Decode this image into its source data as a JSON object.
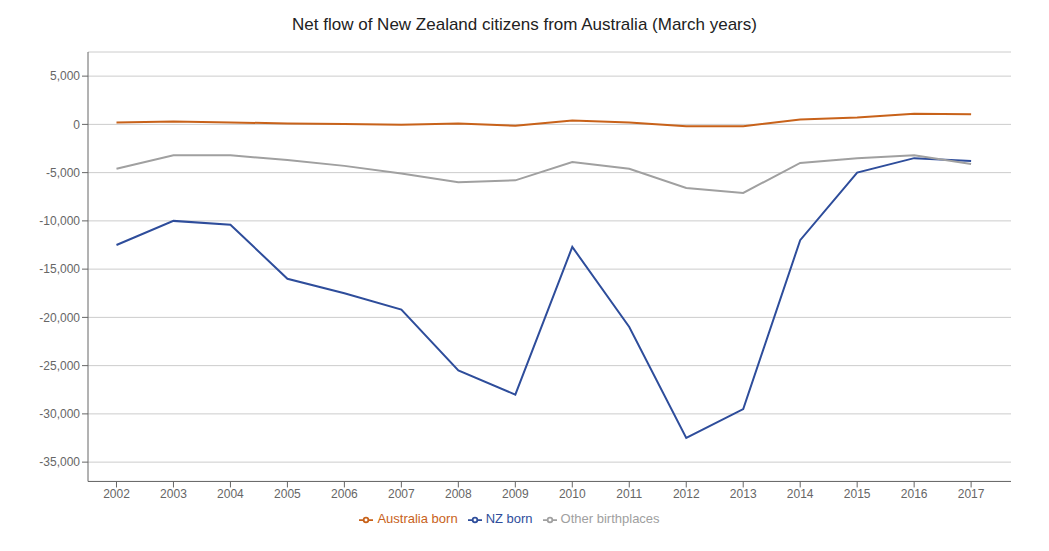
{
  "chart_data": {
    "type": "line",
    "title": "Net flow of New Zealand citizens from Australia (March years)",
    "x": [
      2002,
      2003,
      2004,
      2005,
      2006,
      2007,
      2008,
      2009,
      2010,
      2011,
      2012,
      2013,
      2014,
      2015,
      2016,
      2017
    ],
    "series": [
      {
        "name": "NZ born",
        "color": "#2e4d9b",
        "values": [
          -12500,
          -10000,
          -10400,
          -16000,
          -17500,
          -19200,
          -25500,
          -28000,
          -12700,
          -21000,
          -32500,
          -29500,
          -12000,
          -5000,
          -3500,
          -3800
        ]
      },
      {
        "name": "Australia born",
        "color": "#c8621a",
        "values": [
          200,
          300,
          200,
          100,
          50,
          -50,
          100,
          -150,
          400,
          200,
          -200,
          -200,
          500,
          700,
          1100,
          1050
        ]
      },
      {
        "name": "Other birthplaces",
        "color": "#a0a0a0",
        "values": [
          -4600,
          -3200,
          -3200,
          -3700,
          -4300,
          -5100,
          -6000,
          -5800,
          -3900,
          -4600,
          -6600,
          -7100,
          -4000,
          -3500,
          -3200,
          -4100
        ]
      }
    ],
    "xlim": [
      2001.5,
      2017.7
    ],
    "xticks": [
      2002,
      2003,
      2004,
      2005,
      2006,
      2007,
      2008,
      2009,
      2010,
      2011,
      2012,
      2013,
      2014,
      2015,
      2016,
      2017
    ],
    "ylim": [
      -37000,
      7500
    ],
    "yticks": [
      {
        "value": 5000,
        "label": "5,000"
      },
      0,
      {
        "value": -5000,
        "label": "-5,000"
      },
      {
        "value": -10000,
        "label": "-10,000"
      },
      {
        "value": -15000,
        "label": "-15,000"
      },
      {
        "value": -20000,
        "label": "-20,000"
      },
      {
        "value": -25000,
        "label": "-25,000"
      },
      {
        "value": -30000,
        "label": "-30,000"
      },
      {
        "value": -35000,
        "label": "-35,000"
      }
    ],
    "grid": true,
    "legend": "bottom"
  }
}
